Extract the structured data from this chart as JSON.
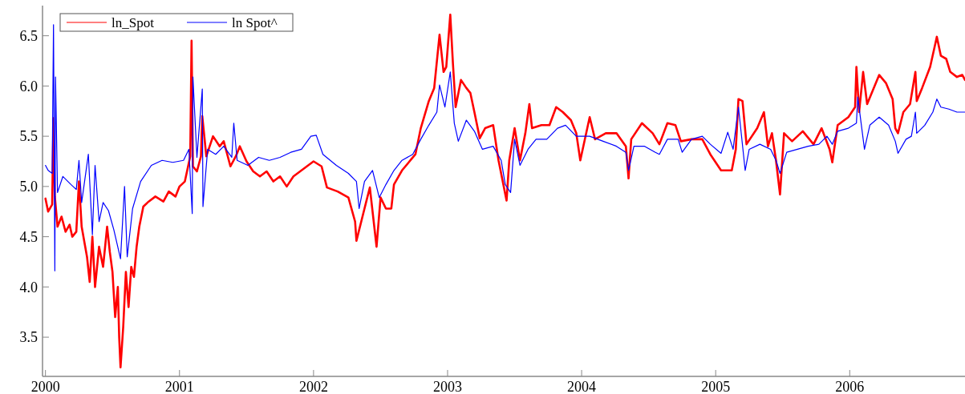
{
  "chart_data": {
    "type": "line",
    "xlim": [
      1999.99,
      2006.86
    ],
    "ylim": [
      3.11,
      6.8
    ],
    "xticks": [
      2000,
      2001,
      2002,
      2003,
      2004,
      2005,
      2006
    ],
    "yticks": [
      {
        "value": 3.5,
        "label": "3.5"
      },
      {
        "value": 4,
        "label": "4.0"
      },
      {
        "value": 4.5,
        "label": "4.5"
      },
      {
        "value": 5,
        "label": "5.0"
      },
      {
        "value": 5.5,
        "label": "5.5"
      },
      {
        "value": 6,
        "label": "6.0"
      },
      {
        "value": 6.5,
        "label": "6.5"
      }
    ],
    "legend": "top left",
    "grid": false,
    "line_style": "solid",
    "marker": "none",
    "series": [
      {
        "name": "ln_Spot",
        "color": "#ff0000",
        "x": [
          2000.0,
          2000.02,
          2000.05,
          2000.06,
          2000.07,
          2000.09,
          2000.12,
          2000.15,
          2000.18,
          2000.2,
          2000.23,
          2000.25,
          2000.27,
          2000.31,
          2000.33,
          2000.35,
          2000.37,
          2000.4,
          2000.43,
          2000.46,
          2000.48,
          2000.5,
          2000.52,
          2000.54,
          2000.55,
          2000.56,
          2000.58,
          2000.6,
          2000.62,
          2000.64,
          2000.66,
          2000.68,
          2000.7,
          2000.73,
          2000.77,
          2000.82,
          2000.88,
          2000.92,
          2000.97,
          2001.0,
          2001.04,
          2001.08,
          2001.09,
          2001.1,
          2001.13,
          2001.16,
          2001.17,
          2001.2,
          2001.25,
          2001.3,
          2001.33,
          2001.38,
          2001.42,
          2001.45,
          2001.5,
          2001.55,
          2001.6,
          2001.65,
          2001.7,
          2001.75,
          2001.8,
          2001.85,
          2001.9,
          2001.95,
          2002.0,
          2002.06,
          2002.1,
          2002.18,
          2002.26,
          2002.31,
          2002.32,
          2002.38,
          2002.42,
          2002.47,
          2002.5,
          2002.54,
          2002.58,
          2002.6,
          2002.66,
          2002.76,
          2002.8,
          2002.86,
          2002.9,
          2002.94,
          2002.97,
          2002.99,
          2003.02,
          2003.04,
          2003.06,
          2003.1,
          2003.14,
          2003.17,
          2003.2,
          2003.24,
          2003.28,
          2003.34,
          2003.38,
          2003.44,
          2003.46,
          2003.5,
          2003.54,
          2003.58,
          2003.61,
          2003.63,
          2003.7,
          2003.76,
          2003.81,
          2003.86,
          2003.92,
          2003.96,
          2003.99,
          2004.06,
          2004.1,
          2004.18,
          2004.26,
          2004.33,
          2004.35,
          2004.37,
          2004.45,
          2004.53,
          2004.58,
          2004.64,
          2004.7,
          2004.74,
          2004.82,
          2004.9,
          2004.96,
          2005.04,
          2005.12,
          2005.15,
          2005.17,
          2005.2,
          2005.23,
          2005.31,
          2005.36,
          2005.39,
          2005.42,
          2005.45,
          2005.48,
          2005.51,
          2005.57,
          2005.65,
          2005.73,
          2005.79,
          2005.85,
          2005.87,
          2005.91,
          2005.99,
          2006.04,
          2006.05,
          2006.07,
          2006.1,
          2006.13,
          2006.17,
          2006.22,
          2006.27,
          2006.32,
          2006.34,
          2006.36,
          2006.4,
          2006.45,
          2006.49,
          2006.5,
          2006.54,
          2006.6,
          2006.64,
          2006.65,
          2006.68,
          2006.72,
          2006.75,
          2006.8,
          2006.84,
          2006.86
        ],
        "values": [
          4.88,
          4.75,
          4.82,
          5.68,
          4.9,
          4.6,
          4.7,
          4.55,
          4.62,
          4.5,
          4.55,
          5.05,
          4.6,
          4.3,
          4.05,
          4.5,
          4.0,
          4.4,
          4.2,
          4.6,
          4.35,
          4.15,
          3.7,
          4.0,
          3.5,
          3.2,
          3.6,
          4.15,
          3.8,
          4.2,
          4.1,
          4.4,
          4.6,
          4.8,
          4.85,
          4.9,
          4.85,
          4.95,
          4.9,
          5.0,
          5.05,
          5.3,
          6.45,
          5.2,
          5.15,
          5.3,
          5.7,
          5.3,
          5.5,
          5.4,
          5.45,
          5.2,
          5.3,
          5.4,
          5.25,
          5.15,
          5.1,
          5.15,
          5.05,
          5.1,
          5.0,
          5.1,
          5.15,
          5.2,
          5.25,
          5.2,
          4.99,
          4.95,
          4.89,
          4.65,
          4.46,
          4.78,
          4.99,
          4.4,
          4.89,
          4.78,
          4.78,
          5.02,
          5.16,
          5.32,
          5.58,
          5.85,
          5.98,
          6.51,
          6.14,
          6.19,
          6.71,
          6.22,
          5.79,
          6.06,
          5.98,
          5.93,
          5.74,
          5.48,
          5.58,
          5.61,
          5.26,
          4.86,
          5.26,
          5.58,
          5.26,
          5.53,
          5.82,
          5.58,
          5.61,
          5.61,
          5.79,
          5.74,
          5.66,
          5.53,
          5.26,
          5.69,
          5.47,
          5.53,
          5.53,
          5.4,
          5.08,
          5.47,
          5.63,
          5.53,
          5.42,
          5.63,
          5.61,
          5.45,
          5.47,
          5.47,
          5.32,
          5.16,
          5.16,
          5.37,
          5.87,
          5.85,
          5.42,
          5.58,
          5.74,
          5.4,
          5.53,
          5.26,
          4.92,
          5.53,
          5.45,
          5.55,
          5.42,
          5.58,
          5.37,
          5.24,
          5.61,
          5.69,
          5.79,
          6.19,
          5.74,
          6.14,
          5.82,
          5.95,
          6.11,
          6.03,
          5.87,
          5.58,
          5.53,
          5.74,
          5.82,
          6.14,
          5.85,
          5.98,
          6.19,
          6.43,
          6.49,
          6.3,
          6.27,
          6.14,
          6.09,
          6.11,
          6.06
        ]
      },
      {
        "name": "ln Spot^",
        "color": "#0000ff",
        "x": [
          2000.0,
          2000.02,
          2000.05,
          2000.06,
          2000.07,
          2000.075,
          2000.09,
          2000.13,
          2000.19,
          2000.23,
          2000.25,
          2000.27,
          2000.32,
          2000.35,
          2000.37,
          2000.4,
          2000.43,
          2000.47,
          2000.51,
          2000.56,
          2000.59,
          2000.61,
          2000.65,
          2000.71,
          2000.79,
          2000.87,
          2000.95,
          2001.03,
          2001.07,
          2001.095,
          2001.1,
          2001.13,
          2001.17,
          2001.175,
          2001.21,
          2001.27,
          2001.33,
          2001.39,
          2001.405,
          2001.43,
          2001.51,
          2001.59,
          2001.67,
          2001.75,
          2001.83,
          2001.91,
          2001.98,
          2002.02,
          2002.07,
          2002.17,
          2002.26,
          2002.32,
          2002.34,
          2002.38,
          2002.44,
          2002.49,
          2002.54,
          2002.6,
          2002.66,
          2002.74,
          2002.8,
          2002.86,
          2002.92,
          2002.94,
          2002.98,
          2003.02,
          2003.05,
          2003.08,
          2003.14,
          2003.2,
          2003.26,
          2003.34,
          2003.4,
          2003.43,
          2003.47,
          2003.5,
          2003.54,
          2003.6,
          2003.66,
          2003.74,
          2003.82,
          2003.88,
          2003.96,
          2004.06,
          2004.16,
          2004.26,
          2004.33,
          2004.35,
          2004.39,
          2004.47,
          2004.55,
          2004.58,
          2004.64,
          2004.72,
          2004.75,
          2004.82,
          2004.9,
          2004.96,
          2005.04,
          2005.09,
          2005.13,
          2005.17,
          2005.22,
          2005.25,
          2005.33,
          2005.41,
          2005.45,
          2005.48,
          2005.53,
          2005.61,
          2005.69,
          2005.77,
          2005.83,
          2005.87,
          2005.91,
          2005.99,
          2006.05,
          2006.06,
          2006.11,
          2006.15,
          2006.22,
          2006.29,
          2006.34,
          2006.36,
          2006.42,
          2006.46,
          2006.49,
          2006.5,
          2006.56,
          2006.62,
          2006.65,
          2006.68,
          2006.74,
          2006.8,
          2006.86
        ],
        "values": [
          5.21,
          5.16,
          5.13,
          6.61,
          4.16,
          6.09,
          4.94,
          5.1,
          5.02,
          4.97,
          5.26,
          4.84,
          5.32,
          4.52,
          5.21,
          4.65,
          4.84,
          4.76,
          4.57,
          4.28,
          5.0,
          4.3,
          4.78,
          5.05,
          5.21,
          5.26,
          5.24,
          5.26,
          5.37,
          4.73,
          6.09,
          5.29,
          5.97,
          4.8,
          5.37,
          5.32,
          5.4,
          5.29,
          5.63,
          5.26,
          5.21,
          5.29,
          5.26,
          5.29,
          5.34,
          5.37,
          5.5,
          5.51,
          5.32,
          5.21,
          5.13,
          5.05,
          4.78,
          5.05,
          5.16,
          4.89,
          5.02,
          5.16,
          5.26,
          5.32,
          5.47,
          5.61,
          5.74,
          6.01,
          5.79,
          6.14,
          5.63,
          5.45,
          5.66,
          5.55,
          5.37,
          5.4,
          5.26,
          5.02,
          4.94,
          5.47,
          5.21,
          5.37,
          5.47,
          5.47,
          5.58,
          5.61,
          5.5,
          5.5,
          5.45,
          5.4,
          5.34,
          5.16,
          5.4,
          5.4,
          5.34,
          5.32,
          5.47,
          5.47,
          5.34,
          5.47,
          5.5,
          5.42,
          5.33,
          5.54,
          5.37,
          5.79,
          5.16,
          5.37,
          5.42,
          5.37,
          5.26,
          5.13,
          5.34,
          5.37,
          5.4,
          5.42,
          5.5,
          5.42,
          5.55,
          5.58,
          5.63,
          5.89,
          5.37,
          5.61,
          5.69,
          5.61,
          5.45,
          5.33,
          5.47,
          5.5,
          5.74,
          5.53,
          5.61,
          5.74,
          5.87,
          5.79,
          5.77,
          5.74,
          5.74
        ]
      }
    ]
  }
}
